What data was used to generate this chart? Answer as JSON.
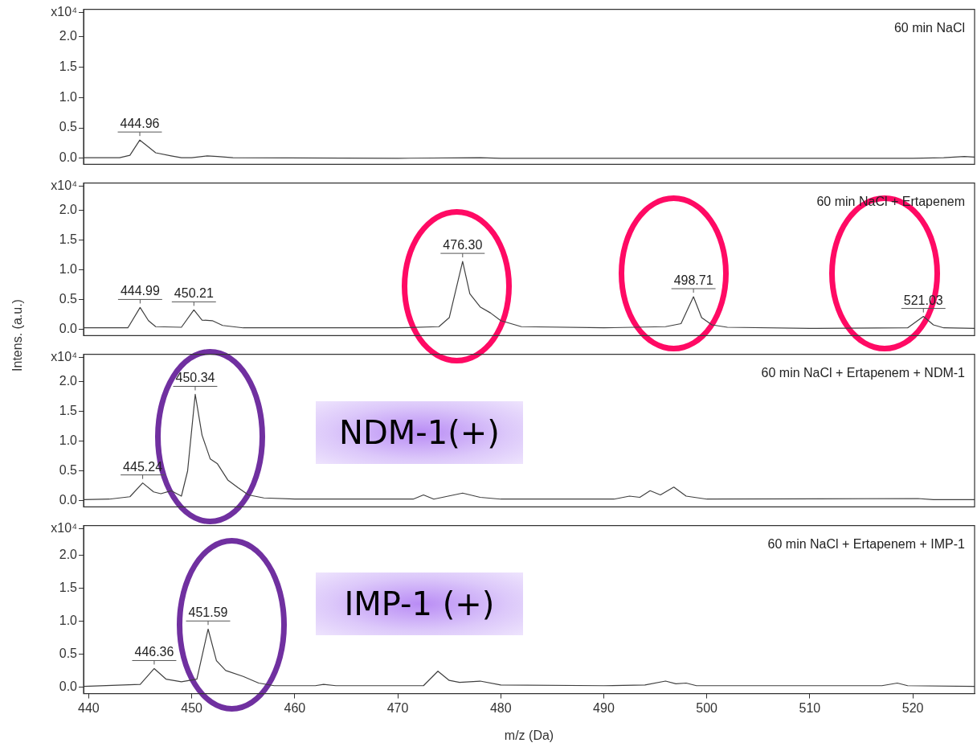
{
  "chart_data": [
    {
      "type": "line",
      "title": "60 min NaCl",
      "xlim": [
        439.5,
        526
      ],
      "xticks": [
        440,
        450,
        460,
        470,
        480,
        490,
        500,
        510,
        520
      ],
      "ylim": [
        -0.1,
        2.45
      ],
      "yticks": [
        {
          "value": 0,
          "label": "0.0"
        },
        {
          "value": 0.5,
          "label": "0.5"
        },
        {
          "value": 1,
          "label": "1.0"
        },
        {
          "value": 1.5,
          "label": "1.5"
        },
        {
          "value": 2,
          "label": "2.0"
        },
        {
          "value": 2.4,
          "label": "x10⁴"
        }
      ],
      "tick_labels": "y",
      "legend": false,
      "marker": "none",
      "series": [
        {
          "color": "#404040",
          "x": [
            439.5,
            443,
            444,
            444.96,
            445.7,
            446.5,
            448,
            449,
            450,
            451.5,
            452.5,
            454,
            470,
            478,
            480,
            520,
            523,
            525,
            526
          ],
          "values": [
            0.01,
            0.01,
            0.05,
            0.3,
            0.2,
            0.09,
            0.04,
            0.01,
            0.01,
            0.04,
            0.03,
            0.01,
            0.0,
            0.01,
            0.0,
            0.0,
            0.01,
            0.03,
            0.02
          ]
        }
      ],
      "annotations": [
        {
          "text": "444.96",
          "x": 444.96,
          "y": 0.3
        }
      ]
    },
    {
      "type": "line",
      "title": "60 min NaCl + Ertapenem",
      "ylabel": "Intens. (a.u.)",
      "xlim": [
        439.5,
        526
      ],
      "xticks": [
        440,
        450,
        460,
        470,
        480,
        490,
        500,
        510,
        520
      ],
      "ylim": [
        -0.1,
        2.45
      ],
      "yticks": [
        {
          "value": 0,
          "label": "0.0"
        },
        {
          "value": 0.5,
          "label": "0.5"
        },
        {
          "value": 1,
          "label": "1.0"
        },
        {
          "value": 1.5,
          "label": "1.5"
        },
        {
          "value": 2,
          "label": "2.0"
        },
        {
          "value": 2.4,
          "label": "x10⁴"
        }
      ],
      "tick_labels": "y",
      "legend": false,
      "marker": "none",
      "series": [
        {
          "color": "#404040",
          "x": [
            439.5,
            443.8,
            444.99,
            445.8,
            446.5,
            449,
            450.21,
            451,
            452,
            453,
            455,
            470,
            474,
            475,
            476.3,
            477,
            478,
            479,
            480,
            482,
            490,
            496,
            497.5,
            498.71,
            499.5,
            500.5,
            502,
            510,
            519.5,
            521.03,
            522,
            523,
            526
          ],
          "values": [
            0.03,
            0.03,
            0.37,
            0.15,
            0.05,
            0.04,
            0.33,
            0.16,
            0.15,
            0.07,
            0.03,
            0.03,
            0.05,
            0.2,
            1.14,
            0.6,
            0.38,
            0.28,
            0.15,
            0.05,
            0.03,
            0.05,
            0.1,
            0.55,
            0.2,
            0.08,
            0.04,
            0.02,
            0.03,
            0.22,
            0.08,
            0.03,
            0.02
          ]
        }
      ],
      "annotations": [
        {
          "text": "444.99",
          "x": 444.99,
          "y": 0.37
        },
        {
          "text": "450.21",
          "x": 450.21,
          "y": 0.33
        },
        {
          "text": "476.30",
          "x": 476.3,
          "y": 1.14
        },
        {
          "text": "498.71",
          "x": 498.71,
          "y": 0.55
        },
        {
          "text": "521.03",
          "x": 521.03,
          "y": 0.22
        }
      ]
    },
    {
      "type": "line",
      "title": "60 min NaCl + Ertapenem + NDM-1",
      "xlim": [
        439.5,
        526
      ],
      "xticks": [
        440,
        450,
        460,
        470,
        480,
        490,
        500,
        510,
        520
      ],
      "ylim": [
        -0.1,
        2.45
      ],
      "yticks": [
        {
          "value": 0,
          "label": "0.0"
        },
        {
          "value": 0.5,
          "label": "0.5"
        },
        {
          "value": 1,
          "label": "1.0"
        },
        {
          "value": 1.5,
          "label": "1.5"
        },
        {
          "value": 2,
          "label": "2.0"
        },
        {
          "value": 2.4,
          "label": "x10⁴"
        }
      ],
      "tick_labels": "y",
      "legend": false,
      "marker": "none",
      "series": [
        {
          "color": "#404040",
          "x": [
            439.5,
            442,
            444,
            445.24,
            446.3,
            447,
            448,
            449,
            449.6,
            450.34,
            451,
            451.8,
            452.5,
            453.5,
            454.5,
            455.5,
            457,
            460,
            471.5,
            472.5,
            473.5,
            476.3,
            478,
            480,
            491,
            492.5,
            493.5,
            494.5,
            495.5,
            496.8,
            498,
            500,
            520.5,
            522,
            526
          ],
          "values": [
            0.02,
            0.03,
            0.07,
            0.3,
            0.15,
            0.12,
            0.17,
            0.08,
            0.5,
            1.78,
            1.1,
            0.7,
            0.62,
            0.35,
            0.22,
            0.1,
            0.05,
            0.03,
            0.03,
            0.1,
            0.03,
            0.13,
            0.06,
            0.03,
            0.03,
            0.08,
            0.06,
            0.17,
            0.1,
            0.23,
            0.08,
            0.03,
            0.04,
            0.02,
            0.02
          ]
        }
      ],
      "annotations": [
        {
          "text": "445.24",
          "x": 445.24,
          "y": 0.3
        },
        {
          "text": "450.34",
          "x": 450.34,
          "y": 1.78
        },
        "NDM-1(+)"
      ]
    },
    {
      "type": "line",
      "title": "60 min NaCl + Ertapenem + IMP-1",
      "xlabel": "m/z (Da)",
      "xlim": [
        439.5,
        526
      ],
      "xticks": [
        440,
        450,
        460,
        470,
        480,
        490,
        500,
        510,
        520
      ],
      "ylim": [
        -0.1,
        2.45
      ],
      "yticks": [
        {
          "value": 0,
          "label": "0.0"
        },
        {
          "value": 0.5,
          "label": "0.5"
        },
        {
          "value": 1,
          "label": "1.0"
        },
        {
          "value": 1.5,
          "label": "1.5"
        },
        {
          "value": 2,
          "label": "2.0"
        },
        {
          "value": 2.4,
          "label": "x10⁴"
        }
      ],
      "legend": false,
      "marker": "none",
      "series": [
        {
          "color": "#404040",
          "x": [
            439.5,
            445,
            446.36,
            447.5,
            449,
            450.5,
            451.59,
            452.4,
            453.3,
            455,
            456.5,
            458,
            462,
            462.8,
            464,
            472.5,
            473.9,
            475,
            476,
            478,
            480,
            490,
            494,
            496,
            497,
            498,
            499,
            517,
            518.5,
            519.5,
            526
          ],
          "values": [
            0.01,
            0.04,
            0.28,
            0.12,
            0.08,
            0.12,
            0.88,
            0.4,
            0.25,
            0.16,
            0.06,
            0.02,
            0.02,
            0.04,
            0.02,
            0.02,
            0.24,
            0.1,
            0.07,
            0.09,
            0.03,
            0.02,
            0.03,
            0.09,
            0.05,
            0.06,
            0.02,
            0.02,
            0.06,
            0.02,
            0.01
          ]
        }
      ],
      "annotations": [
        {
          "text": "446.36",
          "x": 446.36,
          "y": 0.28
        },
        {
          "text": "451.59",
          "x": 451.59,
          "y": 0.88
        },
        "IMP-1 (+)"
      ]
    }
  ]
}
